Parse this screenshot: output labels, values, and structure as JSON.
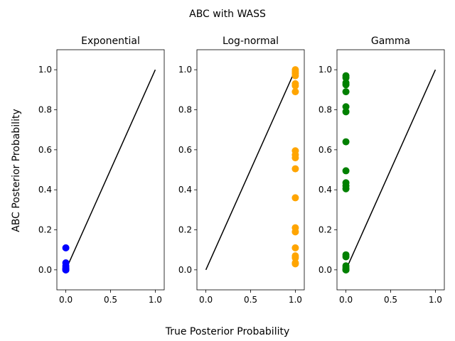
{
  "chart_data": {
    "type": "scatter",
    "suptitle": "ABC with WASS",
    "xlabel": "True Posterior Probability",
    "ylabel": "ABC Posterior Probability",
    "xlim": [
      -0.1,
      1.1
    ],
    "ylim": [
      -0.1,
      1.1
    ],
    "xticks": [
      0.0,
      0.5,
      1.0
    ],
    "xtick_labels": [
      "0.0",
      "0.5",
      "1.0"
    ],
    "yticks": [
      0.0,
      0.2,
      0.4,
      0.6,
      0.8,
      1.0
    ],
    "ytick_labels": [
      "0.0",
      "0.2",
      "0.4",
      "0.6",
      "0.8",
      "1.0"
    ],
    "reference_line": {
      "x": [
        0,
        1
      ],
      "y": [
        0,
        1
      ],
      "color": "#000000"
    },
    "panels": [
      {
        "title": "Exponential",
        "color": "#0000ff",
        "points": [
          {
            "x": 0.0,
            "y": 0.11
          },
          {
            "x": 0.0,
            "y": 0.035
          },
          {
            "x": 0.0,
            "y": 0.02
          },
          {
            "x": 0.0,
            "y": 0.01
          },
          {
            "x": 0.0,
            "y": 0.005
          },
          {
            "x": 0.0,
            "y": 0.0
          },
          {
            "x": 0.0,
            "y": 0.0
          }
        ]
      },
      {
        "title": "Log-normal",
        "color": "#ffa500",
        "points": [
          {
            "x": 1.0,
            "y": 1.0
          },
          {
            "x": 1.0,
            "y": 0.99
          },
          {
            "x": 1.0,
            "y": 0.98
          },
          {
            "x": 1.0,
            "y": 0.97
          },
          {
            "x": 1.0,
            "y": 0.93
          },
          {
            "x": 1.0,
            "y": 0.92
          },
          {
            "x": 1.0,
            "y": 0.89
          },
          {
            "x": 1.0,
            "y": 0.595
          },
          {
            "x": 1.0,
            "y": 0.575
          },
          {
            "x": 1.0,
            "y": 0.56
          },
          {
            "x": 1.0,
            "y": 0.505
          },
          {
            "x": 1.0,
            "y": 0.36
          },
          {
            "x": 1.0,
            "y": 0.21
          },
          {
            "x": 1.0,
            "y": 0.19
          },
          {
            "x": 1.0,
            "y": 0.11
          },
          {
            "x": 1.0,
            "y": 0.07
          },
          {
            "x": 1.0,
            "y": 0.06
          },
          {
            "x": 1.0,
            "y": 0.035
          },
          {
            "x": 1.0,
            "y": 0.03
          }
        ]
      },
      {
        "title": "Gamma",
        "color": "#008000",
        "points": [
          {
            "x": 0.0,
            "y": 0.97
          },
          {
            "x": 0.0,
            "y": 0.96
          },
          {
            "x": 0.0,
            "y": 0.935
          },
          {
            "x": 0.0,
            "y": 0.925
          },
          {
            "x": 0.0,
            "y": 0.89
          },
          {
            "x": 0.0,
            "y": 0.815
          },
          {
            "x": 0.0,
            "y": 0.79
          },
          {
            "x": 0.0,
            "y": 0.64
          },
          {
            "x": 0.0,
            "y": 0.495
          },
          {
            "x": 0.0,
            "y": 0.435
          },
          {
            "x": 0.0,
            "y": 0.42
          },
          {
            "x": 0.0,
            "y": 0.405
          },
          {
            "x": 0.0,
            "y": 0.075
          },
          {
            "x": 0.0,
            "y": 0.065
          },
          {
            "x": 0.0,
            "y": 0.02
          },
          {
            "x": 0.0,
            "y": 0.01
          },
          {
            "x": 0.0,
            "y": 0.0
          },
          {
            "x": 0.0,
            "y": 0.0
          }
        ]
      }
    ]
  }
}
